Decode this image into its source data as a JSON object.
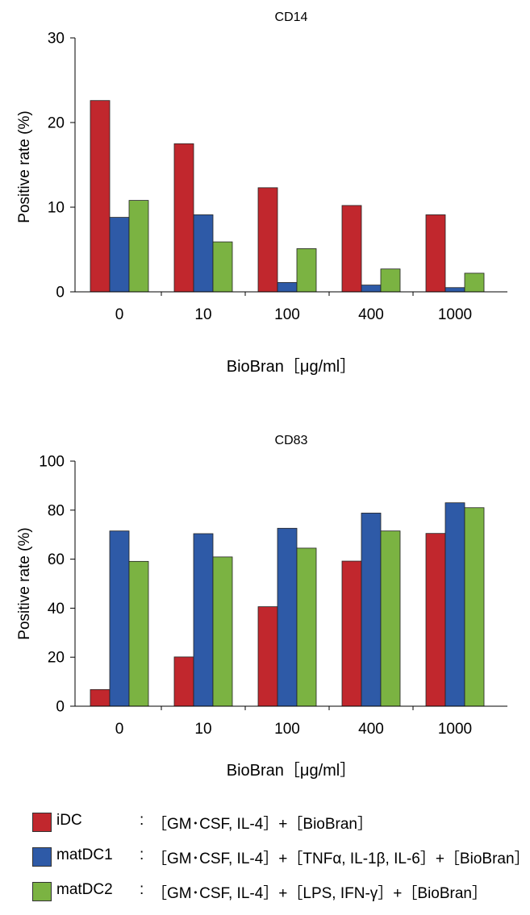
{
  "chart_data": [
    {
      "type": "bar",
      "title": "CD14",
      "ylabel": "Positive rate (%)",
      "xlabel": "BioBran［μg/ml］",
      "categories": [
        "0",
        "10",
        "100",
        "400",
        "1000"
      ],
      "ylim": [
        0,
        30
      ],
      "yticks": [
        0,
        10,
        20,
        30
      ],
      "series": [
        {
          "name": "iDC",
          "color": "#c1272d",
          "values": [
            22.6,
            17.5,
            12.3,
            10.2,
            9.1
          ]
        },
        {
          "name": "matDC1",
          "color": "#2e5aa7",
          "values": [
            8.8,
            9.1,
            1.1,
            0.8,
            0.5
          ]
        },
        {
          "name": "matDC2",
          "color": "#7bb342",
          "values": [
            10.8,
            5.9,
            5.1,
            2.7,
            2.2
          ]
        }
      ]
    },
    {
      "type": "bar",
      "title": "CD83",
      "ylabel": "Positive rate (%)",
      "xlabel": "BioBran［μg/ml］",
      "categories": [
        "0",
        "10",
        "100",
        "400",
        "1000"
      ],
      "ylim": [
        0,
        100
      ],
      "yticks": [
        0,
        20,
        40,
        60,
        80,
        100
      ],
      "series": [
        {
          "name": "iDC",
          "color": "#c1272d",
          "values": [
            6.8,
            20.1,
            40.6,
            59.2,
            70.5
          ]
        },
        {
          "name": "matDC1",
          "color": "#2e5aa7",
          "values": [
            71.5,
            70.4,
            72.6,
            78.8,
            83.0
          ]
        },
        {
          "name": "matDC2",
          "color": "#7bb342",
          "values": [
            59.1,
            60.9,
            64.5,
            71.5,
            81.0
          ]
        }
      ]
    }
  ],
  "legend": [
    {
      "name": "iDC",
      "color": "#c1272d",
      "colon": ":",
      "desc": "［GM･CSF, IL-4］+［BioBran］"
    },
    {
      "name": "matDC1",
      "color": "#2e5aa7",
      "colon": ":",
      "desc": "［GM･CSF, IL-4］+［TNFα, IL-1β, IL-6］+［BioBran］"
    },
    {
      "name": "matDC2",
      "color": "#7bb342",
      "colon": ":",
      "desc": "［GM･CSF, IL-4］+［LPS, IFN-γ］+［BioBran］"
    }
  ]
}
